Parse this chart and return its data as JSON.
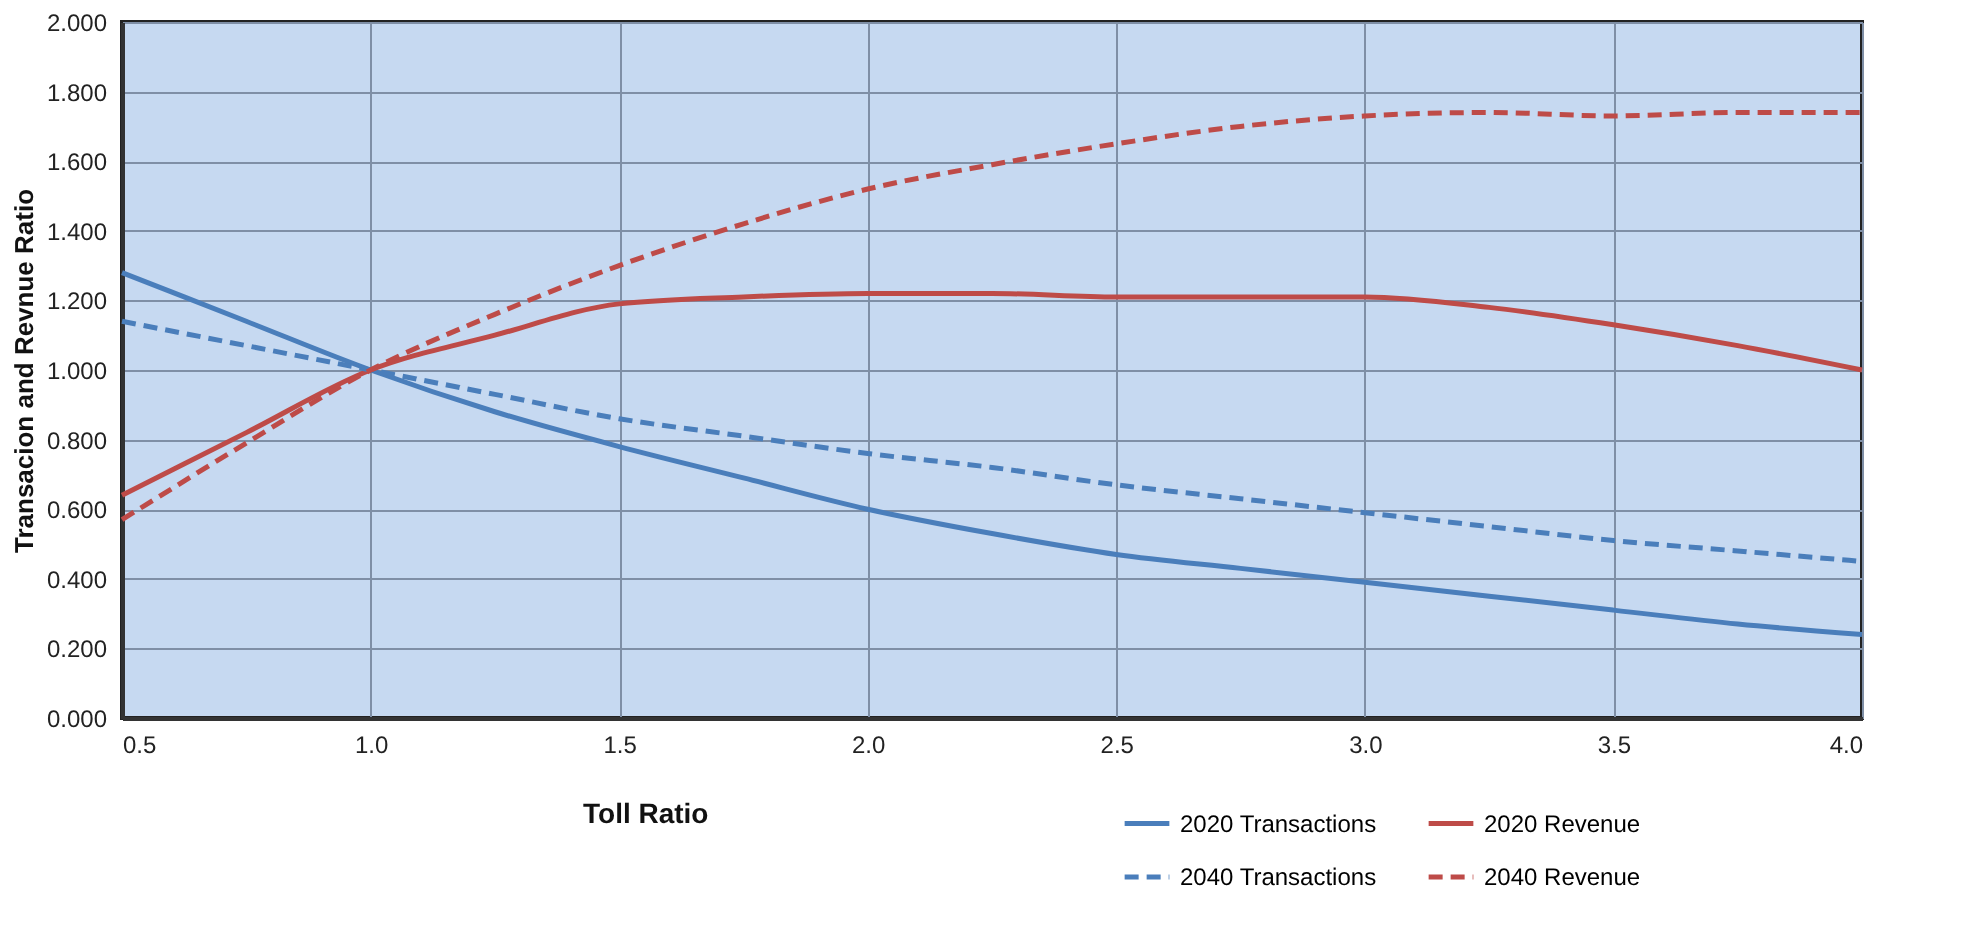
{
  "chart_data": {
    "type": "line",
    "xlabel": "Toll Ratio",
    "ylabel": "Transacion and Revnue Ratio",
    "x": [
      0.5,
      0.75,
      1.0,
      1.25,
      1.5,
      1.75,
      2.0,
      2.25,
      2.5,
      2.75,
      3.0,
      3.25,
      3.5,
      3.75,
      4.0
    ],
    "series": [
      {
        "name": "2020 Transactions",
        "color": "#4a7ebb",
        "line_style": "solid",
        "values": [
          1.28,
          1.14,
          1.0,
          0.88,
          0.78,
          0.69,
          0.6,
          0.53,
          0.47,
          0.43,
          0.39,
          0.35,
          0.31,
          0.27,
          0.24
        ]
      },
      {
        "name": "2020 Revenue",
        "color": "#be4b48",
        "line_style": "solid",
        "values": [
          0.64,
          0.82,
          1.0,
          1.1,
          1.19,
          1.21,
          1.22,
          1.22,
          1.21,
          1.21,
          1.21,
          1.18,
          1.13,
          1.07,
          1.0
        ]
      },
      {
        "name": "2040 Transactions",
        "color": "#4a7ebb",
        "line_style": "dashed",
        "values": [
          1.14,
          1.07,
          1.0,
          0.93,
          0.86,
          0.81,
          0.76,
          0.72,
          0.67,
          0.63,
          0.59,
          0.55,
          0.51,
          0.48,
          0.45
        ]
      },
      {
        "name": "2040 Revenue",
        "color": "#be4b48",
        "line_style": "dashed",
        "values": [
          0.57,
          0.79,
          1.0,
          1.16,
          1.3,
          1.42,
          1.52,
          1.59,
          1.65,
          1.7,
          1.73,
          1.74,
          1.73,
          1.74,
          1.74
        ]
      }
    ],
    "xlim": [
      0.5,
      4.0
    ],
    "xticks": [
      0.5,
      {
        "value": 1.0,
        "label": "1.0"
      },
      1.5,
      {
        "value": 2.0,
        "label": "2.0"
      },
      2.5,
      {
        "value": 3.0,
        "label": "3.0"
      },
      3.5,
      {
        "value": 4.0,
        "label": "4.0"
      }
    ],
    "ylim": [
      0,
      2
    ],
    "yticks": [
      {
        "value": 0,
        "label": "0.000"
      },
      {
        "value": 0.2,
        "label": "0.200"
      },
      {
        "value": 0.4,
        "label": "0.400"
      },
      {
        "value": 0.6,
        "label": "0.600"
      },
      {
        "value": 0.8,
        "label": "0.800"
      },
      {
        "value": 1.0,
        "label": "1.000"
      },
      {
        "value": 1.2,
        "label": "1.200"
      },
      {
        "value": 1.4,
        "label": "1.400"
      },
      {
        "value": 1.6,
        "label": "1.600"
      },
      {
        "value": 1.8,
        "label": "1.800"
      },
      {
        "value": 2.0,
        "label": "2.000"
      }
    ],
    "grid": true,
    "legend": "bottom right",
    "marker": "none"
  }
}
